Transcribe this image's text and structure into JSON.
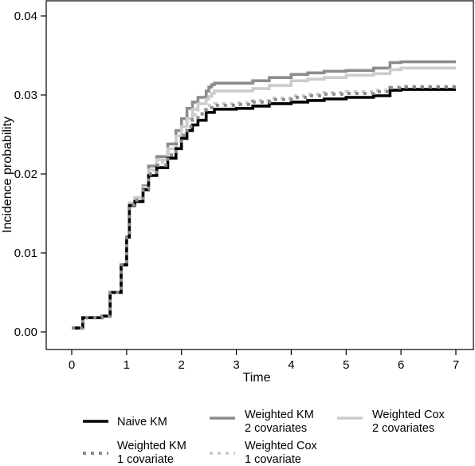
{
  "chart_data": {
    "type": "line",
    "xlabel": "Time",
    "ylabel": "Incidence probability",
    "xlim": [
      0,
      7
    ],
    "ylim": [
      0,
      0.04
    ],
    "xticks": [
      0,
      1,
      2,
      3,
      4,
      5,
      6,
      7
    ],
    "xtick_labels": [
      "0",
      "1",
      "2",
      "3",
      "4",
      "5",
      "6",
      "7"
    ],
    "yticks": [
      0,
      0.01,
      0.02,
      0.03,
      0.04
    ],
    "ytick_labels": [
      "0.00",
      "0.01",
      "0.02",
      "0.03",
      "0.04"
    ],
    "grid": false,
    "legend_position": "bottom",
    "series": [
      {
        "name": "Weighted KM 2 covariates",
        "label_lines": [
          "Weighted KM",
          "2 covariates"
        ],
        "color": "#8c8c8c",
        "dash": "solid",
        "x": [
          0,
          0.2,
          0.55,
          0.7,
          0.9,
          1.0,
          1.05,
          1.15,
          1.3,
          1.4,
          1.55,
          1.75,
          1.9,
          2.0,
          2.1,
          2.2,
          2.3,
          2.45,
          2.5,
          2.55,
          2.6,
          3.0,
          3.3,
          3.6,
          4.0,
          4.3,
          4.6,
          5.0,
          5.5,
          5.8,
          6.0,
          7.0
        ],
        "y": [
          0.0005,
          0.0018,
          0.002,
          0.005,
          0.0085,
          0.012,
          0.0163,
          0.017,
          0.0185,
          0.021,
          0.0222,
          0.0238,
          0.0255,
          0.027,
          0.0283,
          0.0291,
          0.0297,
          0.0305,
          0.031,
          0.0313,
          0.0315,
          0.0315,
          0.0318,
          0.0322,
          0.0326,
          0.0328,
          0.033,
          0.0331,
          0.0334,
          0.0341,
          0.0342,
          0.0342
        ]
      },
      {
        "name": "Weighted Cox 2 covariates",
        "label_lines": [
          "Weighted Cox",
          "2 covariates"
        ],
        "color": "#cccccc",
        "dash": "solid",
        "x": [
          0,
          0.2,
          0.55,
          0.7,
          0.9,
          1.0,
          1.05,
          1.15,
          1.3,
          1.4,
          1.55,
          1.75,
          1.9,
          2.0,
          2.1,
          2.2,
          2.3,
          2.45,
          2.5,
          2.55,
          2.6,
          3.0,
          3.3,
          3.6,
          4.0,
          4.3,
          4.6,
          5.0,
          5.5,
          5.8,
          6.0,
          7.0
        ],
        "y": [
          0.0005,
          0.0018,
          0.002,
          0.005,
          0.0085,
          0.012,
          0.0163,
          0.017,
          0.0183,
          0.0205,
          0.0218,
          0.0232,
          0.0248,
          0.026,
          0.027,
          0.0282,
          0.0289,
          0.0295,
          0.0298,
          0.0302,
          0.0305,
          0.0305,
          0.0308,
          0.0312,
          0.0318,
          0.032,
          0.0322,
          0.0325,
          0.0327,
          0.0332,
          0.0334,
          0.0334
        ]
      },
      {
        "name": "Weighted Cox 1 covariate",
        "label_lines": [
          "Weighted Cox",
          "1 covariate"
        ],
        "color": "#cccccc",
        "dash": "dotted",
        "x": [
          0,
          0.2,
          0.55,
          0.7,
          0.9,
          1.0,
          1.05,
          1.15,
          1.3,
          1.4,
          1.55,
          1.75,
          1.9,
          2.0,
          2.1,
          2.2,
          2.3,
          2.45,
          2.6,
          3.0,
          3.3,
          3.6,
          4.0,
          4.3,
          4.6,
          5.0,
          5.5,
          5.8,
          6.0,
          7.0
        ],
        "y": [
          0.0005,
          0.0018,
          0.002,
          0.005,
          0.0085,
          0.012,
          0.0163,
          0.017,
          0.0182,
          0.0203,
          0.0215,
          0.0228,
          0.0242,
          0.0252,
          0.0265,
          0.0275,
          0.0282,
          0.0287,
          0.0289,
          0.029,
          0.0293,
          0.0296,
          0.0299,
          0.0301,
          0.0303,
          0.0304,
          0.0306,
          0.031,
          0.0311,
          0.0311
        ]
      },
      {
        "name": "Naive KM",
        "label_lines": [
          "Naive KM"
        ],
        "color": "#000000",
        "dash": "solid",
        "x": [
          0,
          0.2,
          0.55,
          0.7,
          0.9,
          1.0,
          1.05,
          1.15,
          1.3,
          1.4,
          1.55,
          1.75,
          1.9,
          2.0,
          2.1,
          2.2,
          2.3,
          2.45,
          2.6,
          3.0,
          3.3,
          3.6,
          4.0,
          4.3,
          4.6,
          5.0,
          5.5,
          5.8,
          6.0,
          7.0
        ],
        "y": [
          0.0005,
          0.0018,
          0.002,
          0.005,
          0.0085,
          0.012,
          0.016,
          0.0165,
          0.018,
          0.0198,
          0.0208,
          0.022,
          0.0232,
          0.0245,
          0.0255,
          0.0262,
          0.0268,
          0.0278,
          0.0282,
          0.0283,
          0.0286,
          0.0289,
          0.0291,
          0.0293,
          0.0295,
          0.0297,
          0.0299,
          0.0306,
          0.0307,
          0.0307
        ]
      },
      {
        "name": "Weighted KM 1 covariate",
        "label_lines": [
          "Weighted KM",
          "1 covariate"
        ],
        "color": "#8c8c8c",
        "dash": "dotted",
        "x": [
          0,
          0.2,
          0.55,
          0.7,
          0.9,
          1.0,
          1.05,
          1.15,
          1.3,
          1.4,
          1.55,
          1.75,
          1.9,
          2.0,
          2.1,
          2.2,
          2.3,
          2.45,
          2.6,
          3.0,
          3.3,
          3.6,
          4.0,
          4.3,
          4.6,
          5.0,
          5.5,
          5.8,
          6.0,
          7.0
        ],
        "y": [
          0.0005,
          0.0018,
          0.002,
          0.005,
          0.0085,
          0.012,
          0.0161,
          0.0167,
          0.0181,
          0.02,
          0.0211,
          0.0224,
          0.0238,
          0.0249,
          0.026,
          0.0269,
          0.0276,
          0.0284,
          0.0287,
          0.0288,
          0.0291,
          0.0294,
          0.0297,
          0.0299,
          0.0301,
          0.0302,
          0.0304,
          0.0309,
          0.031,
          0.031
        ]
      }
    ],
    "legend_order": [
      "Naive KM",
      "Weighted KM 2 covariates",
      "Weighted Cox 2 covariates",
      "Weighted KM 1 covariate",
      "Weighted Cox 1 covariate"
    ]
  }
}
